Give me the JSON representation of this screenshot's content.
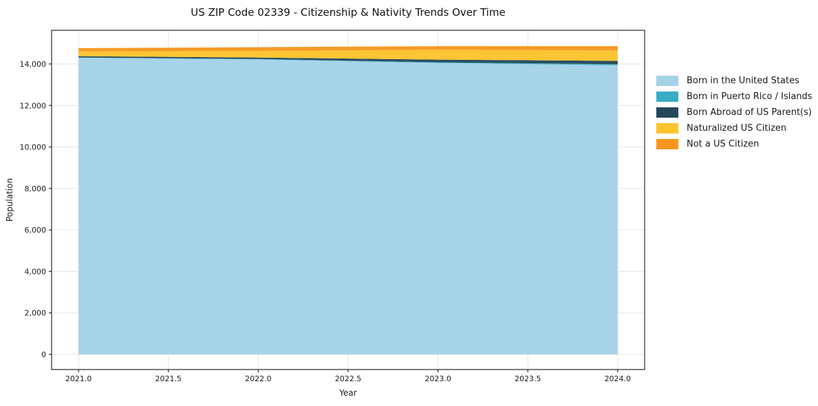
{
  "chart_data": {
    "type": "area",
    "stacked": true,
    "title": "US ZIP Code 02339 - Citizenship & Nativity Trends Over Time",
    "xlabel": "Year",
    "ylabel": "Population",
    "x": [
      2021,
      2022,
      2023,
      2024
    ],
    "series": [
      {
        "name": "Born in the United States",
        "color": "#a3d2e8",
        "values": [
          14300,
          14220,
          14050,
          13940
        ]
      },
      {
        "name": "Born in Puerto Rico / Islands",
        "color": "#3aacc6",
        "values": [
          15,
          20,
          30,
          50
        ]
      },
      {
        "name": "Born Abroad of US Parent(s)",
        "color": "#23485a",
        "values": [
          60,
          70,
          130,
          160
        ]
      },
      {
        "name": "Naturalized US Citizen",
        "color": "#fcc32c",
        "values": [
          230,
          320,
          480,
          500
        ]
      },
      {
        "name": "Not a US Citizen",
        "color": "#f6961e",
        "values": [
          160,
          180,
          170,
          210
        ]
      }
    ],
    "xticks": [
      2021.0,
      2021.5,
      2022.0,
      2022.5,
      2023.0,
      2023.5,
      2024.0
    ],
    "xtick_labels": [
      "2021.0",
      "2021.5",
      "2022.0",
      "2022.5",
      "2023.0",
      "2023.5",
      "2024.0"
    ],
    "yticks": [
      0,
      2000,
      4000,
      6000,
      8000,
      10000,
      12000,
      14000
    ],
    "ytick_labels": [
      "0",
      "2,000",
      "4,000",
      "6,000",
      "8,000",
      "10,000",
      "12,000",
      "14,000"
    ],
    "xlim": [
      2020.85,
      2024.15
    ],
    "ylim": [
      -730,
      15625
    ],
    "grid": true,
    "legend_position": "right",
    "grid_color": "#e5e5e5",
    "axis_color": "#262626",
    "tick_label_color": "#1a1a1a"
  }
}
